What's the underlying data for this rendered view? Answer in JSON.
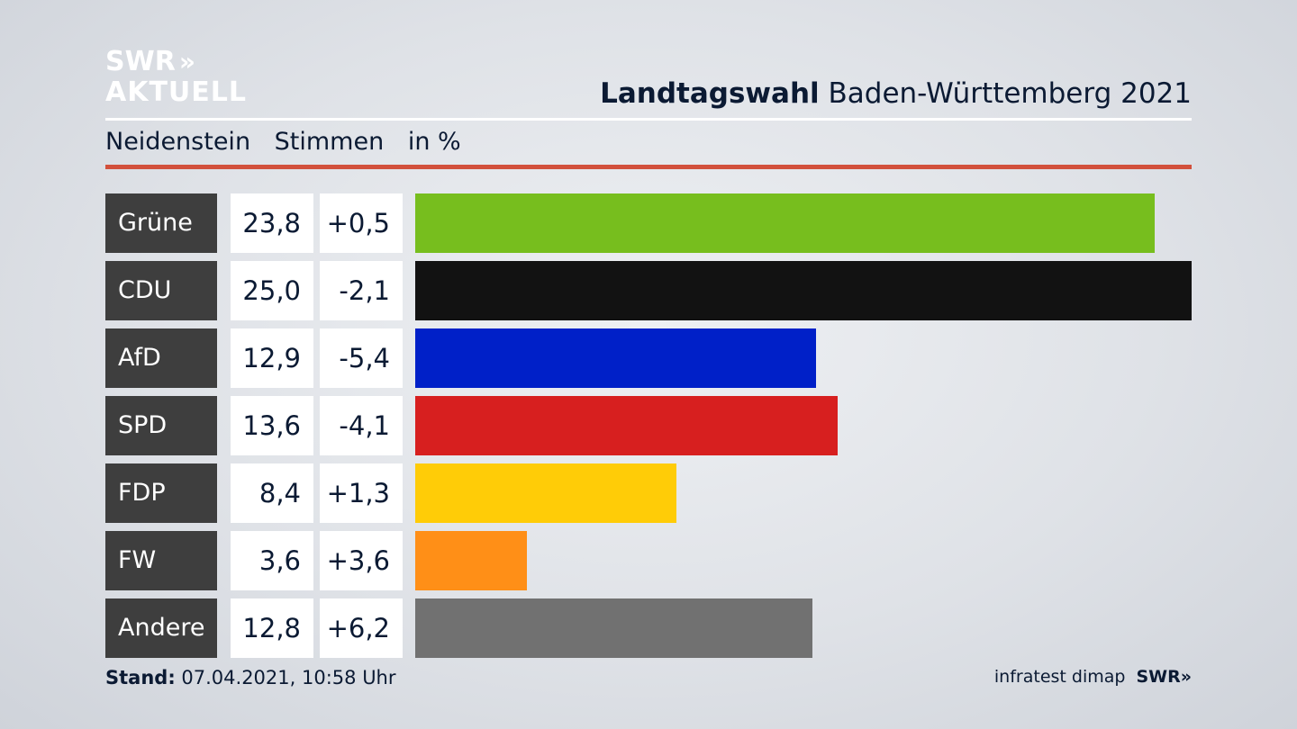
{
  "logo": {
    "line1": "SWR",
    "chevrons": "»",
    "line2": "AKTUELL"
  },
  "header": {
    "title_bold": "Landtagswahl",
    "title_rest": "Baden-Württemberg 2021"
  },
  "subheader": {
    "place": "Neidenstein",
    "measure": "Stimmen",
    "unit": "in %"
  },
  "colors": {
    "accent_line": "#d2503c",
    "label_bg": "#3e3e3e"
  },
  "chart_data": {
    "type": "bar",
    "orientation": "horizontal",
    "categories": [
      "Grüne",
      "CDU",
      "AfD",
      "SPD",
      "FDP",
      "FW",
      "Andere"
    ],
    "values": [
      23.8,
      25.0,
      12.9,
      13.6,
      8.4,
      3.6,
      12.8
    ],
    "value_labels": [
      "23,8",
      "25,0",
      "12,9",
      "13,6",
      "8,4",
      "3,6",
      "12,8"
    ],
    "change_labels": [
      "+0,5",
      "-2,1",
      "-5,4",
      "-4,1",
      "+1,3",
      "+3,6",
      "+6,2"
    ],
    "changes": [
      0.5,
      -2.1,
      -5.4,
      -4.1,
      1.3,
      3.6,
      6.2
    ],
    "colors": [
      "#77be1e",
      "#121212",
      "#0020c8",
      "#d71f1f",
      "#ffcc07",
      "#ff8f17",
      "#717171"
    ],
    "xlim": [
      0,
      25.0
    ],
    "grid": false
  },
  "footer": {
    "stand_label": "Stand:",
    "stand_value": "07.04.2021, 10:58 Uhr",
    "source": "infratest dimap",
    "brand": "SWR»"
  }
}
